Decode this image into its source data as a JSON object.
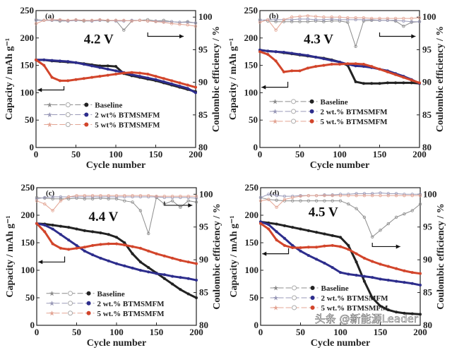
{
  "chart_data": [
    {
      "type": "line",
      "panel_label": "(a)",
      "annotation": "4.2 V",
      "xlabel": "Cycle number",
      "ylabel": "Capacity / mAh g⁻¹",
      "y2label": "Coulombic efficiency / %",
      "xlim": [
        0,
        200
      ],
      "ylim": [
        0,
        250
      ],
      "y2lim": [
        80,
        101
      ],
      "xticks": [
        "0",
        "50",
        "100",
        "150",
        "200"
      ],
      "yticks": [
        "0",
        "50",
        "100",
        "150",
        "200",
        "250"
      ],
      "y2ticks": [
        "80",
        "85",
        "90",
        "95",
        "100"
      ],
      "legend_placement": "center",
      "x": [
        0,
        10,
        20,
        30,
        40,
        50,
        60,
        70,
        80,
        90,
        100,
        110,
        120,
        130,
        140,
        150,
        160,
        170,
        180,
        190,
        200
      ],
      "series": [
        {
          "name": "Baseline",
          "color": "#222222",
          "ce_color": "#8c8c8c",
          "capacity": [
            160,
            160,
            158,
            157,
            156,
            155,
            153,
            151,
            149,
            149,
            148,
            135,
            131,
            128,
            125,
            122,
            118,
            114,
            110,
            106,
            102
          ],
          "ce": [
            99.6,
            99.5,
            99.5,
            99.4,
            99.4,
            99.5,
            99.4,
            99.4,
            99.5,
            99.4,
            99.5,
            98.0,
            99.4,
            99.5,
            99.6,
            99.4,
            99.5,
            99.3,
            99.2,
            99.3,
            99.1
          ]
        },
        {
          "name": "2 wt% BTMSMFM",
          "color": "#2d2d8c",
          "ce_color": "#9a9ab8",
          "capacity": [
            160,
            160,
            159,
            158,
            157,
            155,
            152,
            149,
            146,
            143,
            140,
            137,
            133,
            130,
            127,
            124,
            120,
            116,
            112,
            108,
            100
          ],
          "ce": [
            99.5,
            99.5,
            99.5,
            99.5,
            99.4,
            99.5,
            99.5,
            99.4,
            99.5,
            99.5,
            99.4,
            99.4,
            99.5,
            99.5,
            99.4,
            99.4,
            99.3,
            99.3,
            99.2,
            99.2,
            99.1
          ]
        },
        {
          "name": "5 wt% BTMSMFM",
          "color": "#d2452b",
          "ce_color": "#e3a594",
          "capacity": [
            160,
            150,
            128,
            122,
            122,
            124,
            126,
            128,
            130,
            132,
            134,
            136,
            137,
            136,
            134,
            130,
            126,
            122,
            118,
            114,
            110
          ],
          "ce": [
            99.0,
            99.5,
            99.6,
            99.6,
            99.5,
            99.6,
            99.5,
            99.5,
            99.6,
            99.5,
            99.5,
            99.5,
            99.4,
            99.5,
            99.4,
            99.3,
            99.2,
            99.0,
            98.9,
            98.8,
            98.6
          ]
        }
      ]
    },
    {
      "type": "line",
      "panel_label": "(b)",
      "annotation": "4.3 V",
      "xlabel": "Cycle number",
      "ylabel": "Capacity / mAh g⁻¹",
      "y2label": "Coulombic efficiency / %",
      "xlim": [
        0,
        200
      ],
      "ylim": [
        0,
        250
      ],
      "y2lim": [
        80,
        101
      ],
      "xticks": [
        "0",
        "50",
        "100",
        "150",
        "200"
      ],
      "yticks": [
        "0",
        "50",
        "100",
        "150",
        "200",
        "250"
      ],
      "y2ticks": [
        "80",
        "85",
        "90",
        "95",
        "100"
      ],
      "legend_placement": "center",
      "x": [
        0,
        10,
        20,
        30,
        40,
        50,
        60,
        70,
        80,
        90,
        100,
        110,
        120,
        130,
        140,
        150,
        160,
        170,
        180,
        190,
        200
      ],
      "series": [
        {
          "name": "Baseline",
          "color": "#222222",
          "ce_color": "#8c8c8c",
          "capacity": [
            178,
            176,
            175,
            173,
            171,
            169,
            167,
            165,
            163,
            160,
            156,
            150,
            120,
            117,
            117,
            117,
            118,
            118,
            118,
            118,
            117
          ],
          "ce": [
            99.6,
            99.4,
            99.3,
            99.3,
            99.3,
            99.3,
            99.3,
            99.4,
            99.3,
            99.4,
            99.4,
            99.2,
            95.5,
            99.4,
            99.5,
            99.5,
            99.5,
            99.4,
            98.6,
            99.2,
            99.3
          ]
        },
        {
          "name": "2 wt.% BTMSMFM",
          "color": "#2d2d8c",
          "ce_color": "#9a9ab8",
          "capacity": [
            178,
            176,
            175,
            174,
            172,
            170,
            168,
            165,
            162,
            159,
            156,
            152,
            149,
            148,
            146,
            143,
            140,
            135,
            130,
            124,
            117
          ],
          "ce": [
            99.5,
            99.6,
            99.6,
            99.6,
            99.6,
            99.7,
            99.7,
            99.6,
            99.6,
            99.7,
            99.6,
            99.6,
            99.6,
            99.6,
            99.6,
            99.5,
            99.5,
            99.5,
            99.4,
            99.3,
            99.3
          ]
        },
        {
          "name": "5 wt.% BTMSMFM",
          "color": "#d2452b",
          "ce_color": "#e3a594",
          "capacity": [
            175,
            170,
            158,
            138,
            140,
            140,
            145,
            148,
            150,
            152,
            152,
            153,
            153,
            152,
            148,
            143,
            138,
            133,
            128,
            123,
            118
          ],
          "ce": [
            99.2,
            99.6,
            98.0,
            99.6,
            100.0,
            100.1,
            100.2,
            100.1,
            100.0,
            100.0,
            100.0,
            99.9,
            99.9,
            99.9,
            99.8,
            99.8,
            99.8,
            99.8,
            99.8,
            99.8,
            99.9
          ]
        }
      ]
    },
    {
      "type": "line",
      "panel_label": "(c)",
      "annotation": "4.4 V",
      "xlabel": "Cycle number",
      "ylabel": "Capacity / mAh g⁻¹",
      "y2label": "Coulombic efficiency / %",
      "xlim": [
        0,
        200
      ],
      "ylim": [
        0,
        250
      ],
      "y2lim": [
        80,
        101
      ],
      "xticks": [
        "0",
        "50",
        "100",
        "150",
        "200"
      ],
      "yticks": [
        "0",
        "50",
        "100",
        "150",
        "200",
        "250"
      ],
      "y2ticks": [
        "80",
        "85",
        "90",
        "95",
        "100"
      ],
      "legend_placement": "lower-center",
      "x": [
        0,
        10,
        20,
        30,
        40,
        50,
        60,
        70,
        80,
        90,
        100,
        110,
        120,
        130,
        140,
        150,
        160,
        170,
        180,
        190,
        200
      ],
      "series": [
        {
          "name": "Baseline",
          "color": "#222222",
          "ce_color": "#8c8c8c",
          "capacity": [
            185,
            184,
            182,
            180,
            178,
            175,
            172,
            170,
            168,
            165,
            160,
            150,
            130,
            115,
            105,
            95,
            85,
            75,
            65,
            57,
            50
          ],
          "ce": [
            99.5,
            99.4,
            99.3,
            99.3,
            99.3,
            99.4,
            99.3,
            99.3,
            99.4,
            99.3,
            99.3,
            99.0,
            98.8,
            97.5,
            94.0,
            99.5,
            98.5,
            99.0,
            98.0,
            99.0,
            98.8
          ]
        },
        {
          "name": "2 wt.% BTMSMFM",
          "color": "#2d2d8c",
          "ce_color": "#9a9ab8",
          "capacity": [
            185,
            182,
            175,
            165,
            155,
            145,
            135,
            128,
            122,
            117,
            112,
            108,
            104,
            100,
            97,
            94,
            92,
            89,
            87,
            85,
            82
          ],
          "ce": [
            99.3,
            99.5,
            99.6,
            99.6,
            99.6,
            99.6,
            99.6,
            99.6,
            99.6,
            99.6,
            99.6,
            99.6,
            99.6,
            99.6,
            99.6,
            99.6,
            99.5,
            99.5,
            99.5,
            99.5,
            99.4
          ]
        },
        {
          "name": "5 wt.% BTMSMFM",
          "color": "#d2452b",
          "ce_color": "#e3a594",
          "capacity": [
            185,
            170,
            148,
            140,
            138,
            140,
            142,
            145,
            147,
            148,
            148,
            146,
            143,
            140,
            135,
            130,
            126,
            122,
            118,
            115,
            112
          ],
          "ce": [
            99.0,
            98.5,
            97.5,
            99.0,
            99.6,
            99.8,
            99.8,
            99.8,
            99.8,
            99.8,
            99.8,
            99.8,
            99.8,
            99.8,
            99.8,
            99.7,
            99.7,
            99.7,
            99.7,
            99.7,
            99.7
          ]
        }
      ]
    },
    {
      "type": "line",
      "panel_label": "(d)",
      "annotation": "4.5 V",
      "xlabel": "Cycle number",
      "ylabel": "Capacity / mAh g⁻¹",
      "y2label": "Coulombic efficiency / %",
      "xlim": [
        0,
        200
      ],
      "ylim": [
        0,
        250
      ],
      "y2lim": [
        80,
        101
      ],
      "xticks": [
        "0",
        "50",
        "100",
        "150",
        "200"
      ],
      "yticks": [
        "0",
        "50",
        "100",
        "150",
        "200",
        "250"
      ],
      "y2ticks": [
        "80",
        "85",
        "90",
        "95",
        "100"
      ],
      "legend_placement": "lower-left",
      "x": [
        0,
        10,
        20,
        30,
        40,
        50,
        60,
        70,
        80,
        90,
        100,
        110,
        120,
        130,
        140,
        150,
        160,
        170,
        180,
        190,
        200
      ],
      "series": [
        {
          "name": "Baseline",
          "color": "#222222",
          "ce_color": "#8c8c8c",
          "capacity": [
            188,
            186,
            184,
            181,
            178,
            175,
            172,
            169,
            166,
            163,
            160,
            145,
            115,
            80,
            50,
            35,
            28,
            24,
            22,
            21,
            20
          ],
          "ce": [
            99.5,
            99.2,
            99.1,
            99.0,
            99.0,
            99.0,
            99.0,
            99.0,
            99.0,
            99.0,
            99.0,
            98.5,
            97.8,
            96.5,
            93.5,
            94.5,
            95.5,
            96.5,
            97.0,
            97.5,
            98.5
          ]
        },
        {
          "name": "2 wt.% BTMSMFM",
          "color": "#2d2d8c",
          "ce_color": "#9a9ab8",
          "capacity": [
            188,
            183,
            170,
            158,
            145,
            135,
            127,
            120,
            113,
            105,
            96,
            93,
            91,
            89,
            87,
            84,
            82,
            80,
            78,
            76,
            73
          ],
          "ce": [
            99.5,
            100.0,
            99.8,
            99.7,
            99.7,
            99.8,
            99.8,
            99.8,
            99.9,
            99.9,
            100.0,
            100.0,
            100.1,
            100.1,
            100.1,
            100.2,
            100.1,
            100.1,
            100.0,
            100.0,
            100.0
          ]
        },
        {
          "name": "5 wt.% BTMSMFM",
          "color": "#d2452b",
          "ce_color": "#e3a594",
          "capacity": [
            185,
            175,
            155,
            145,
            141,
            141,
            142,
            142,
            144,
            145,
            143,
            138,
            130,
            122,
            116,
            111,
            107,
            103,
            99,
            96,
            94
          ],
          "ce": [
            99.0,
            99.2,
            98.0,
            99.2,
            99.5,
            99.7,
            99.8,
            99.8,
            99.8,
            99.8,
            99.8,
            99.8,
            99.8,
            99.8,
            99.8,
            99.8,
            99.8,
            99.8,
            99.8,
            99.8,
            99.8
          ]
        }
      ]
    }
  ],
  "watermark": "头条 @新能源Leader"
}
